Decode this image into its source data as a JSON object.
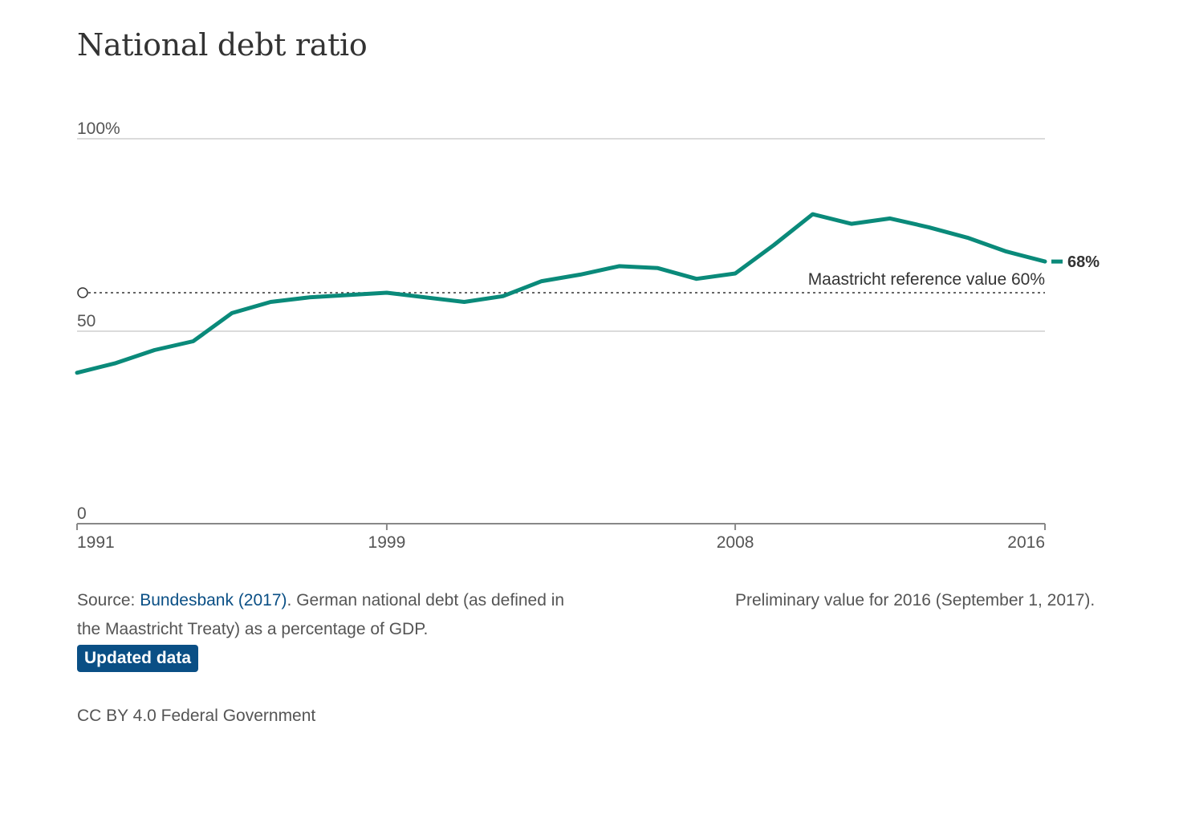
{
  "chart_data": {
    "type": "line",
    "title": "National debt ratio",
    "ylim": [
      0,
      100
    ],
    "y_ticks": [
      0,
      50,
      100
    ],
    "y_tick_labels": [
      "0",
      "50",
      "100%"
    ],
    "x_ticks": [
      1991,
      1999,
      2008,
      2016
    ],
    "x_tick_labels": [
      "1991",
      "1999",
      "2008",
      "2016"
    ],
    "grid": "horizontal",
    "series": [
      {
        "color": "#0a8a7a",
        "x": [
          1991,
          1992,
          1993,
          1994,
          1995,
          1996,
          1997,
          1998,
          1999,
          2000,
          2001,
          2002,
          2003,
          2004,
          2005,
          2006,
          2007,
          2008,
          2009,
          2010,
          2011,
          2012,
          2013,
          2014,
          2015,
          2016
        ],
        "y": [
          39.2,
          41.7,
          45.1,
          47.4,
          54.7,
          57.6,
          58.8,
          59.4,
          60.0,
          58.8,
          57.6,
          59.1,
          63.0,
          64.7,
          66.9,
          66.4,
          63.6,
          65.0,
          72.4,
          80.4,
          77.9,
          79.3,
          77.0,
          74.3,
          70.7,
          68.1
        ]
      }
    ],
    "reference_line": {
      "value": 60,
      "label": "Maastricht reference value 60%",
      "style": "dotted"
    },
    "end_label": "68%"
  },
  "footer": {
    "source_prefix": "Source: ",
    "source_link": "Bundesbank (2017)",
    "source_text": ". German national debt (as defined in the Maastricht Treaty) as a percentage of GDP.",
    "note": "Preliminary value for 2016 (September 1, 2017).",
    "updated_button": "Updated data",
    "license": "CC BY 4.0 Federal Government"
  }
}
